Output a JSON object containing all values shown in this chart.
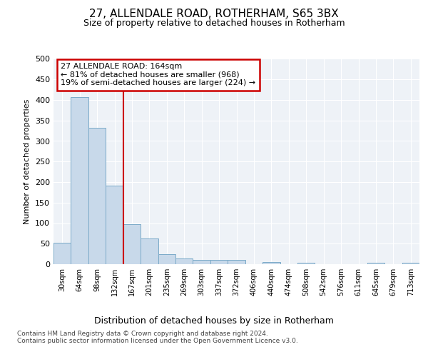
{
  "title": "27, ALLENDALE ROAD, ROTHERHAM, S65 3BX",
  "subtitle": "Size of property relative to detached houses in Rotherham",
  "xlabel": "Distribution of detached houses by size in Rotherham",
  "ylabel": "Number of detached properties",
  "bar_color": "#c8d9ea",
  "bar_edge_color": "#7aaac8",
  "background_color": "#eef2f7",
  "vline_color": "#cc0000",
  "annotation_text": "27 ALLENDALE ROAD: 164sqm\n← 81% of detached houses are smaller (968)\n19% of semi-detached houses are larger (224) →",
  "annotation_box_color": "#cc0000",
  "categories": [
    "30sqm",
    "64sqm",
    "98sqm",
    "132sqm",
    "167sqm",
    "201sqm",
    "235sqm",
    "269sqm",
    "303sqm",
    "337sqm",
    "372sqm",
    "406sqm",
    "440sqm",
    "474sqm",
    "508sqm",
    "542sqm",
    "576sqm",
    "611sqm",
    "645sqm",
    "679sqm",
    "713sqm"
  ],
  "values": [
    52,
    407,
    332,
    192,
    98,
    62,
    24,
    14,
    10,
    10,
    10,
    0,
    5,
    0,
    4,
    0,
    0,
    0,
    4,
    0,
    4
  ],
  "ylim": [
    0,
    500
  ],
  "yticks": [
    0,
    50,
    100,
    150,
    200,
    250,
    300,
    350,
    400,
    450,
    500
  ],
  "footnote": "Contains HM Land Registry data © Crown copyright and database right 2024.\nContains public sector information licensed under the Open Government Licence v3.0.",
  "figsize": [
    6.0,
    5.0
  ],
  "dpi": 100,
  "vline_bar_index": 4
}
